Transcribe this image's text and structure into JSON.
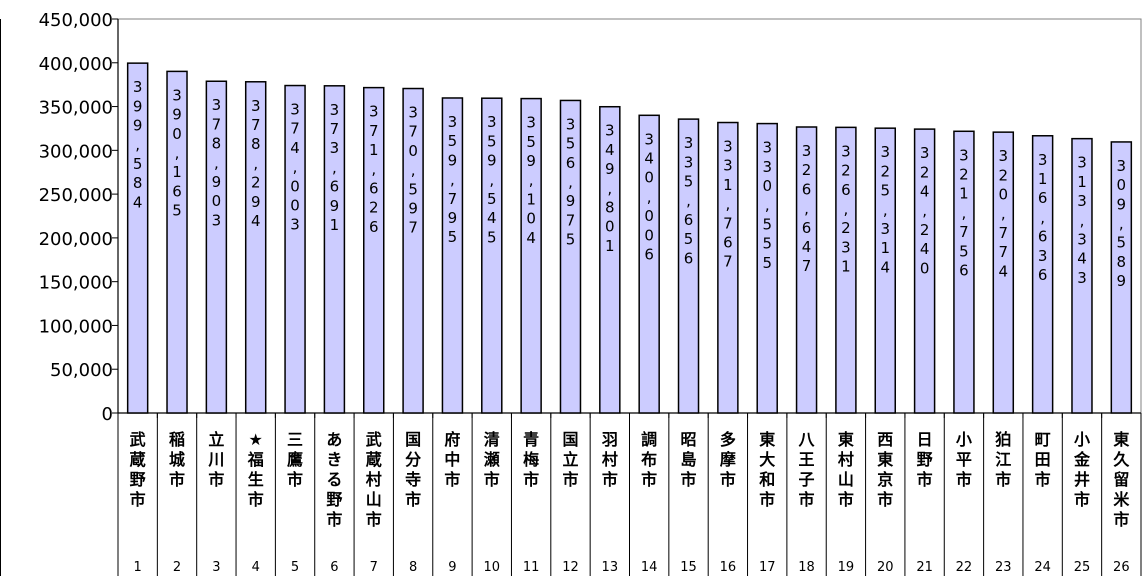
{
  "chart_data": {
    "type": "bar",
    "ylim": [
      0,
      450000
    ],
    "yticks": [
      0,
      50000,
      100000,
      150000,
      200000,
      250000,
      300000,
      350000,
      400000,
      450000
    ],
    "ytick_labels": [
      "0",
      "50,000",
      "100,000",
      "150,000",
      "200,000",
      "250,000",
      "300,000",
      "350,000",
      "400,000",
      "450,000"
    ],
    "bar_color": "#ccccff",
    "grid": false,
    "legend": "none",
    "categories": [
      "武蔵野市",
      "稲城市",
      "立川市",
      "★福生市",
      "三鷹市",
      "あきる野市",
      "武蔵村山市",
      "国分寺市",
      "府中市",
      "清瀬市",
      "青梅市",
      "国立市",
      "羽村市",
      "調布市",
      "昭島市",
      "多摩市",
      "東大和市",
      "八王子市",
      "東村山市",
      "西東京市",
      "日野市",
      "小平市",
      "狛江市",
      "町田市",
      "小金井市",
      "東久留米市"
    ],
    "ranks": [
      "1",
      "2",
      "3",
      "4",
      "5",
      "6",
      "7",
      "8",
      "9",
      "10",
      "11",
      "12",
      "13",
      "14",
      "15",
      "16",
      "17",
      "18",
      "19",
      "20",
      "21",
      "22",
      "23",
      "24",
      "25",
      "26"
    ],
    "values": [
      399584,
      390165,
      378903,
      378294,
      374003,
      373691,
      371626,
      370597,
      359795,
      359545,
      359104,
      356975,
      349801,
      340006,
      335656,
      331767,
      330555,
      326647,
      326231,
      325314,
      324240,
      321756,
      320774,
      316636,
      313343,
      309589
    ],
    "value_labels": [
      "399,584",
      "390,165",
      "378,903",
      "378,294",
      "374,003",
      "373,691",
      "371,626",
      "370,597",
      "359,795",
      "359,545",
      "359,104",
      "356,975",
      "349,801",
      "340,006",
      "335,656",
      "331,767",
      "330,555",
      "326,647",
      "326,231",
      "325,314",
      "324,240",
      "321,756",
      "320,774",
      "316,636",
      "313,343",
      "309,589"
    ]
  }
}
